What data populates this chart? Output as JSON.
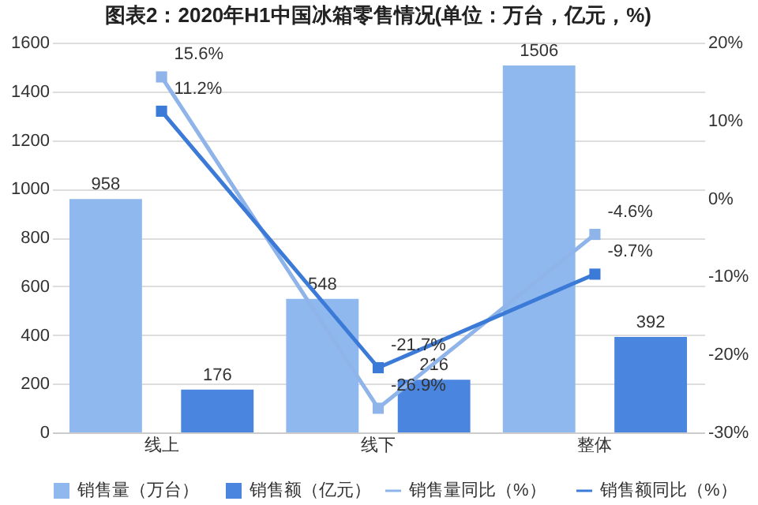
{
  "chart_data": {
    "type": "bar",
    "title": "图表2：2020年H1中国冰箱零售情况(单位：万台，亿元，%)",
    "categories": [
      "线上",
      "线下",
      "整体"
    ],
    "series": [
      {
        "name": "销售量（万台）",
        "color": "#8fb8ee",
        "values": [
          958,
          548,
          1506
        ],
        "value_labels": [
          "958",
          "548",
          "1506"
        ]
      },
      {
        "name": "销售额（亿元）",
        "color": "#4a86e0",
        "values": [
          176,
          216,
          392
        ],
        "value_labels": [
          "176",
          "216",
          "392"
        ]
      },
      {
        "name": "销售量同比（%）",
        "type": "line",
        "axis": "y2",
        "color": "#8fb4ea",
        "values": [
          15.6,
          -26.9,
          -4.6
        ],
        "value_labels": [
          "15.6%",
          "-26.9%",
          "-4.6%"
        ]
      },
      {
        "name": "销售额同比（%）",
        "type": "line",
        "axis": "y2",
        "color": "#3c7ad8",
        "values": [
          11.2,
          -21.7,
          -9.7
        ],
        "value_labels": [
          "11.2%",
          "-21.7%",
          "-9.7%"
        ]
      }
    ],
    "ylim": [
      0,
      1600
    ],
    "yticks": [
      0,
      200,
      400,
      600,
      800,
      1000,
      1200,
      1400,
      1600
    ],
    "y2lim": [
      -30,
      20
    ],
    "y2ticks": [
      {
        "value": -30,
        "label": "-30%"
      },
      {
        "value": -20,
        "label": "-20%"
      },
      {
        "value": -10,
        "label": "-10%"
      },
      {
        "value": 0,
        "label": "0%"
      },
      {
        "value": 10,
        "label": "10%"
      },
      {
        "value": 20,
        "label": "20%"
      }
    ],
    "grid": "y",
    "legend": "bottom",
    "marker": "square",
    "line_style": "solid"
  }
}
